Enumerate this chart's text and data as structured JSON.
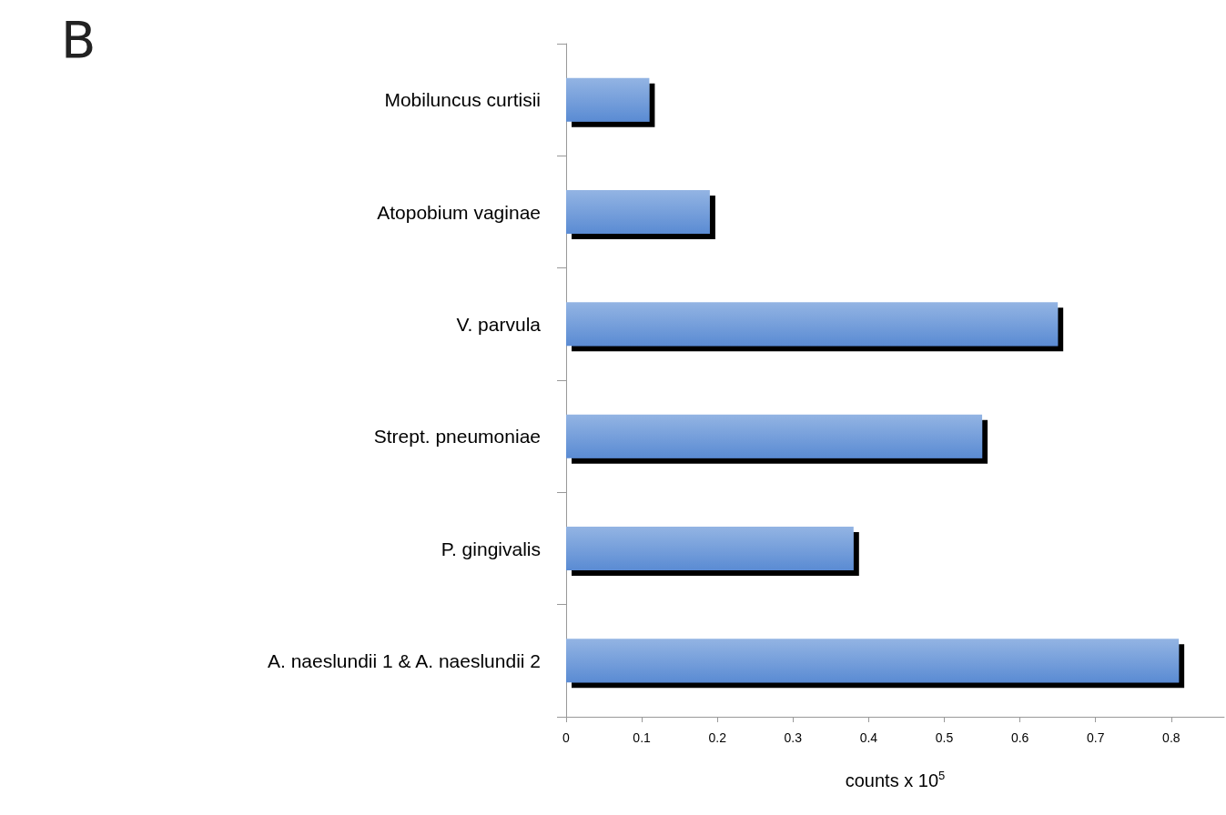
{
  "chart_data": {
    "type": "bar",
    "orientation": "horizontal",
    "title": "B",
    "categories": [
      "Mobiluncus curtisii",
      "Atopobium vaginae",
      "V. parvula",
      "Strept. pneumoniae",
      "P. gingivalis",
      "A. naeslundii 1 & A. naeslundii 2"
    ],
    "values": [
      0.11,
      0.19,
      0.65,
      0.55,
      0.38,
      0.81
    ],
    "color": "#5a8bd3",
    "xlabel": "counts x 10$^{5}$",
    "xlim": [
      0,
      0.87
    ],
    "xticks": [
      0,
      0.1,
      0.2,
      0.3,
      0.4,
      0.5,
      0.6,
      0.7,
      0.8
    ],
    "grid": false
  }
}
